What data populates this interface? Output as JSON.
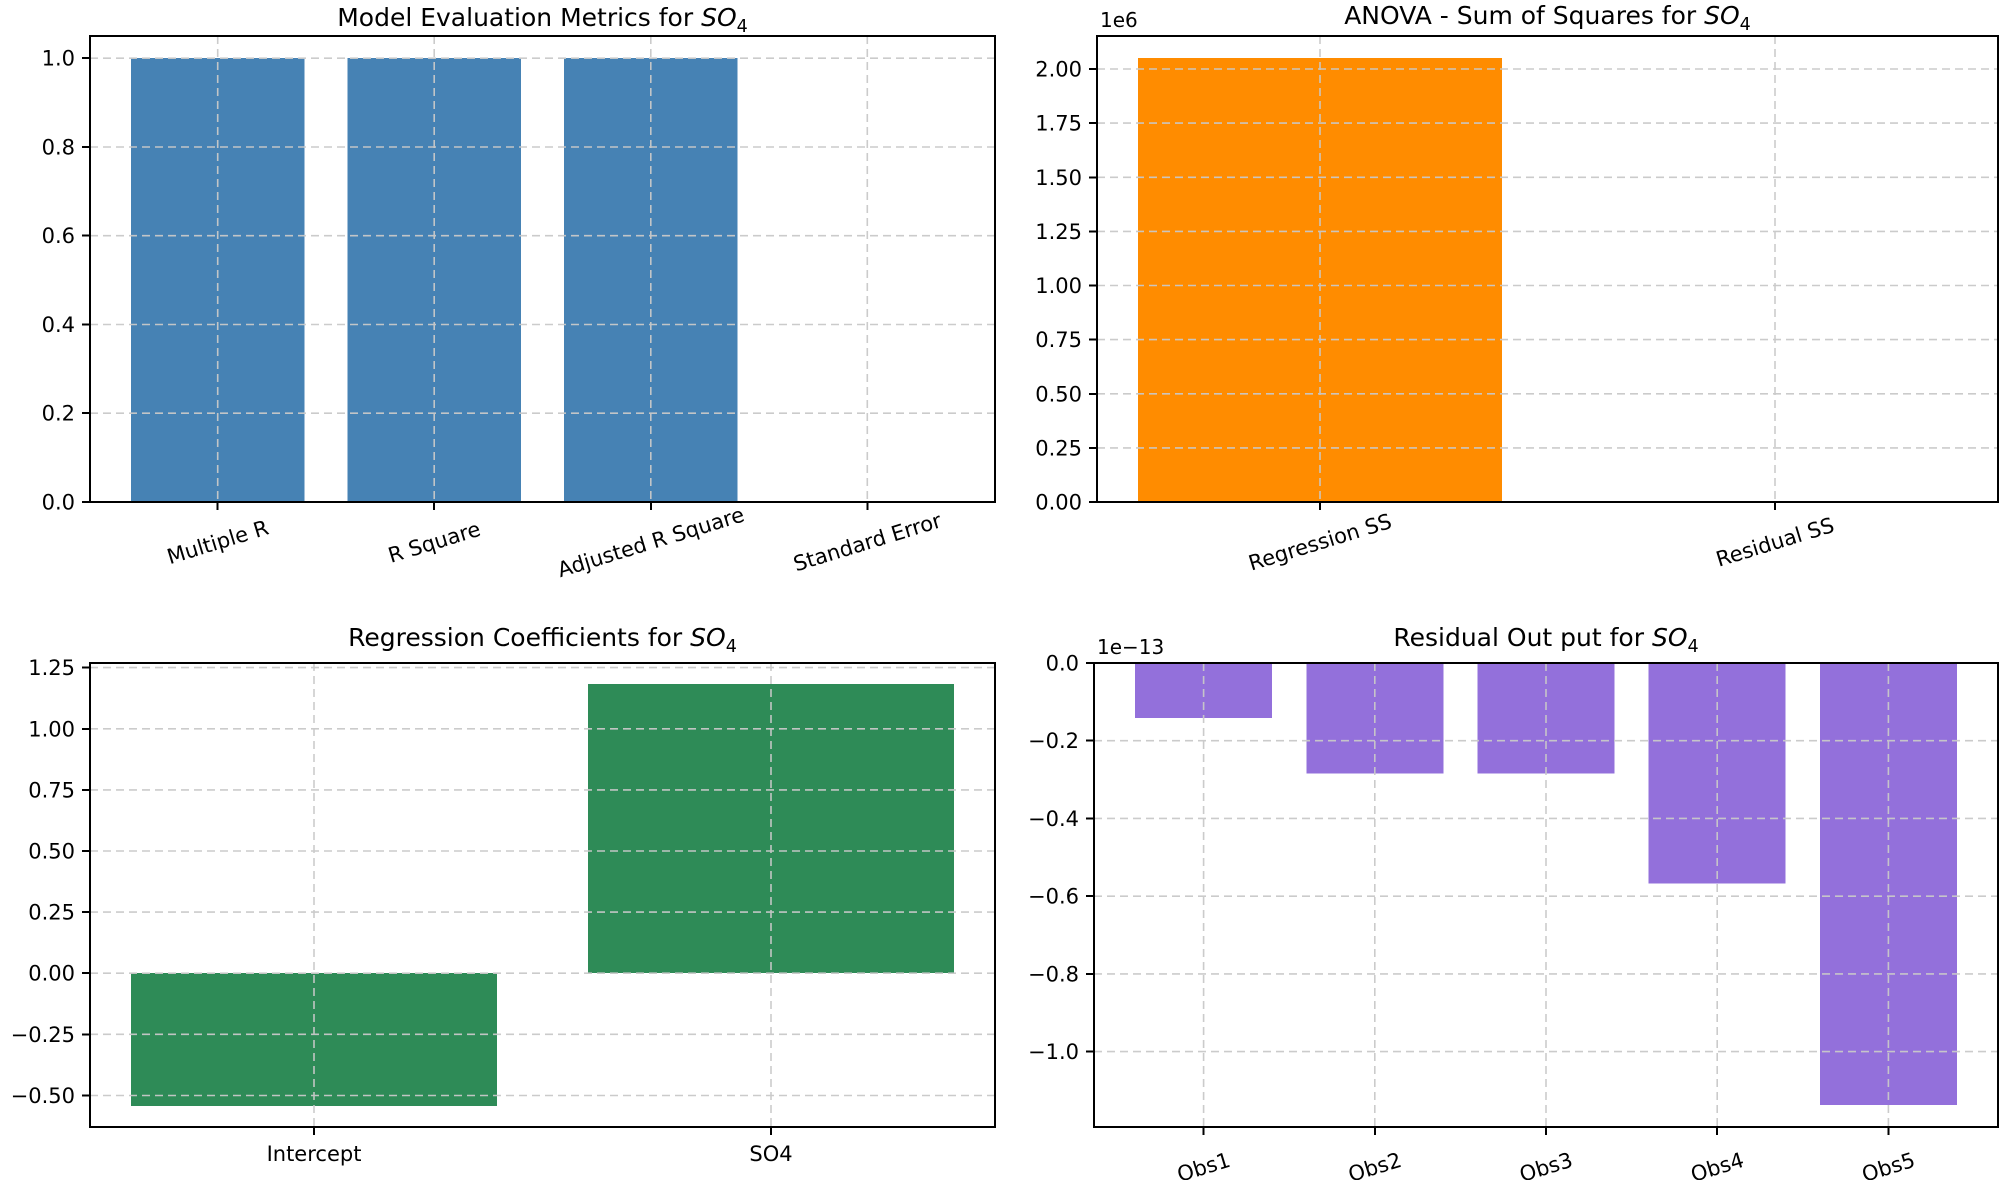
{
  "figure": {
    "background": "#ffffff",
    "colors": {
      "grid": "#c9c9c9",
      "axes": "#000000",
      "text": "#000000"
    }
  },
  "chart_data": [
    {
      "id": "model-metrics",
      "type": "bar",
      "title": {
        "prefix": "Model Evaluation Metrics for ",
        "var": "SO",
        "sub": "4"
      },
      "categories": [
        "Multiple R",
        "R Square",
        "Adjusted R Square",
        "Standard Error"
      ],
      "values": [
        1.0,
        1.0,
        1.0,
        0.0
      ],
      "bar_color": "#4682B4",
      "ylim": [
        0,
        1.05
      ],
      "yticks": [
        0,
        0.2,
        0.4,
        0.6,
        0.8,
        1.0
      ],
      "ytick_labels": [
        "0.0",
        "0.2",
        "0.4",
        "0.6",
        "0.8",
        "1.0"
      ],
      "xtick_rotation": -17,
      "offset_label": "",
      "grid": true,
      "legend": "none"
    },
    {
      "id": "anova-ss",
      "type": "bar",
      "title": {
        "prefix": "ANOVA - Sum of Squares for ",
        "var": "SO",
        "sub": "4"
      },
      "categories": [
        "Regression SS",
        "Residual SS"
      ],
      "values": [
        2050000,
        0
      ],
      "bar_color": "#FF8C00",
      "ylim": [
        0,
        2152500
      ],
      "yticks": [
        0,
        250000,
        500000,
        750000,
        1000000,
        1250000,
        1500000,
        1750000,
        2000000
      ],
      "ytick_labels": [
        "0.00",
        "0.25",
        "0.50",
        "0.75",
        "1.00",
        "1.25",
        "1.50",
        "1.75",
        "2.00"
      ],
      "xtick_rotation": -17,
      "offset_label": "1e6",
      "grid": true,
      "legend": "none"
    },
    {
      "id": "regression-coefficients",
      "type": "bar",
      "title": {
        "prefix": "Regression Coefficients for ",
        "var": "SO",
        "sub": "4"
      },
      "categories": [
        "Intercept",
        "SO4"
      ],
      "values": [
        -0.543,
        1.183
      ],
      "bar_color": "#2E8B57",
      "ylim": [
        -0.629,
        1.269
      ],
      "yticks": [
        -0.5,
        -0.25,
        0,
        0.25,
        0.5,
        0.75,
        1.0,
        1.25
      ],
      "ytick_labels": [
        "−0.50",
        "−0.25",
        "0.00",
        "0.25",
        "0.50",
        "0.75",
        "1.00",
        "1.25"
      ],
      "xtick_rotation": 0,
      "offset_label": "",
      "grid": true,
      "legend": "none"
    },
    {
      "id": "residual-output",
      "type": "bar",
      "title": {
        "prefix": "Residual Out put for ",
        "var": "SO",
        "sub": "4"
      },
      "categories": [
        "Obs1",
        "Obs2",
        "Obs3",
        "Obs4",
        "Obs5"
      ],
      "values": [
        -1.42e-14,
        -2.84e-14,
        -2.84e-14,
        -5.68e-14,
        -1.137e-13
      ],
      "bar_color": "#9370DB",
      "ylim": [
        -1.194e-13,
        0
      ],
      "yticks": [
        0,
        -2e-14,
        -4e-14,
        -6e-14,
        -8e-14,
        -1e-13
      ],
      "ytick_labels": [
        "0.0",
        "−0.2",
        "−0.4",
        "−0.6",
        "−0.8",
        "−1.0"
      ],
      "xtick_rotation": -17,
      "offset_label": "1e−13",
      "grid": true,
      "legend": "none"
    }
  ]
}
